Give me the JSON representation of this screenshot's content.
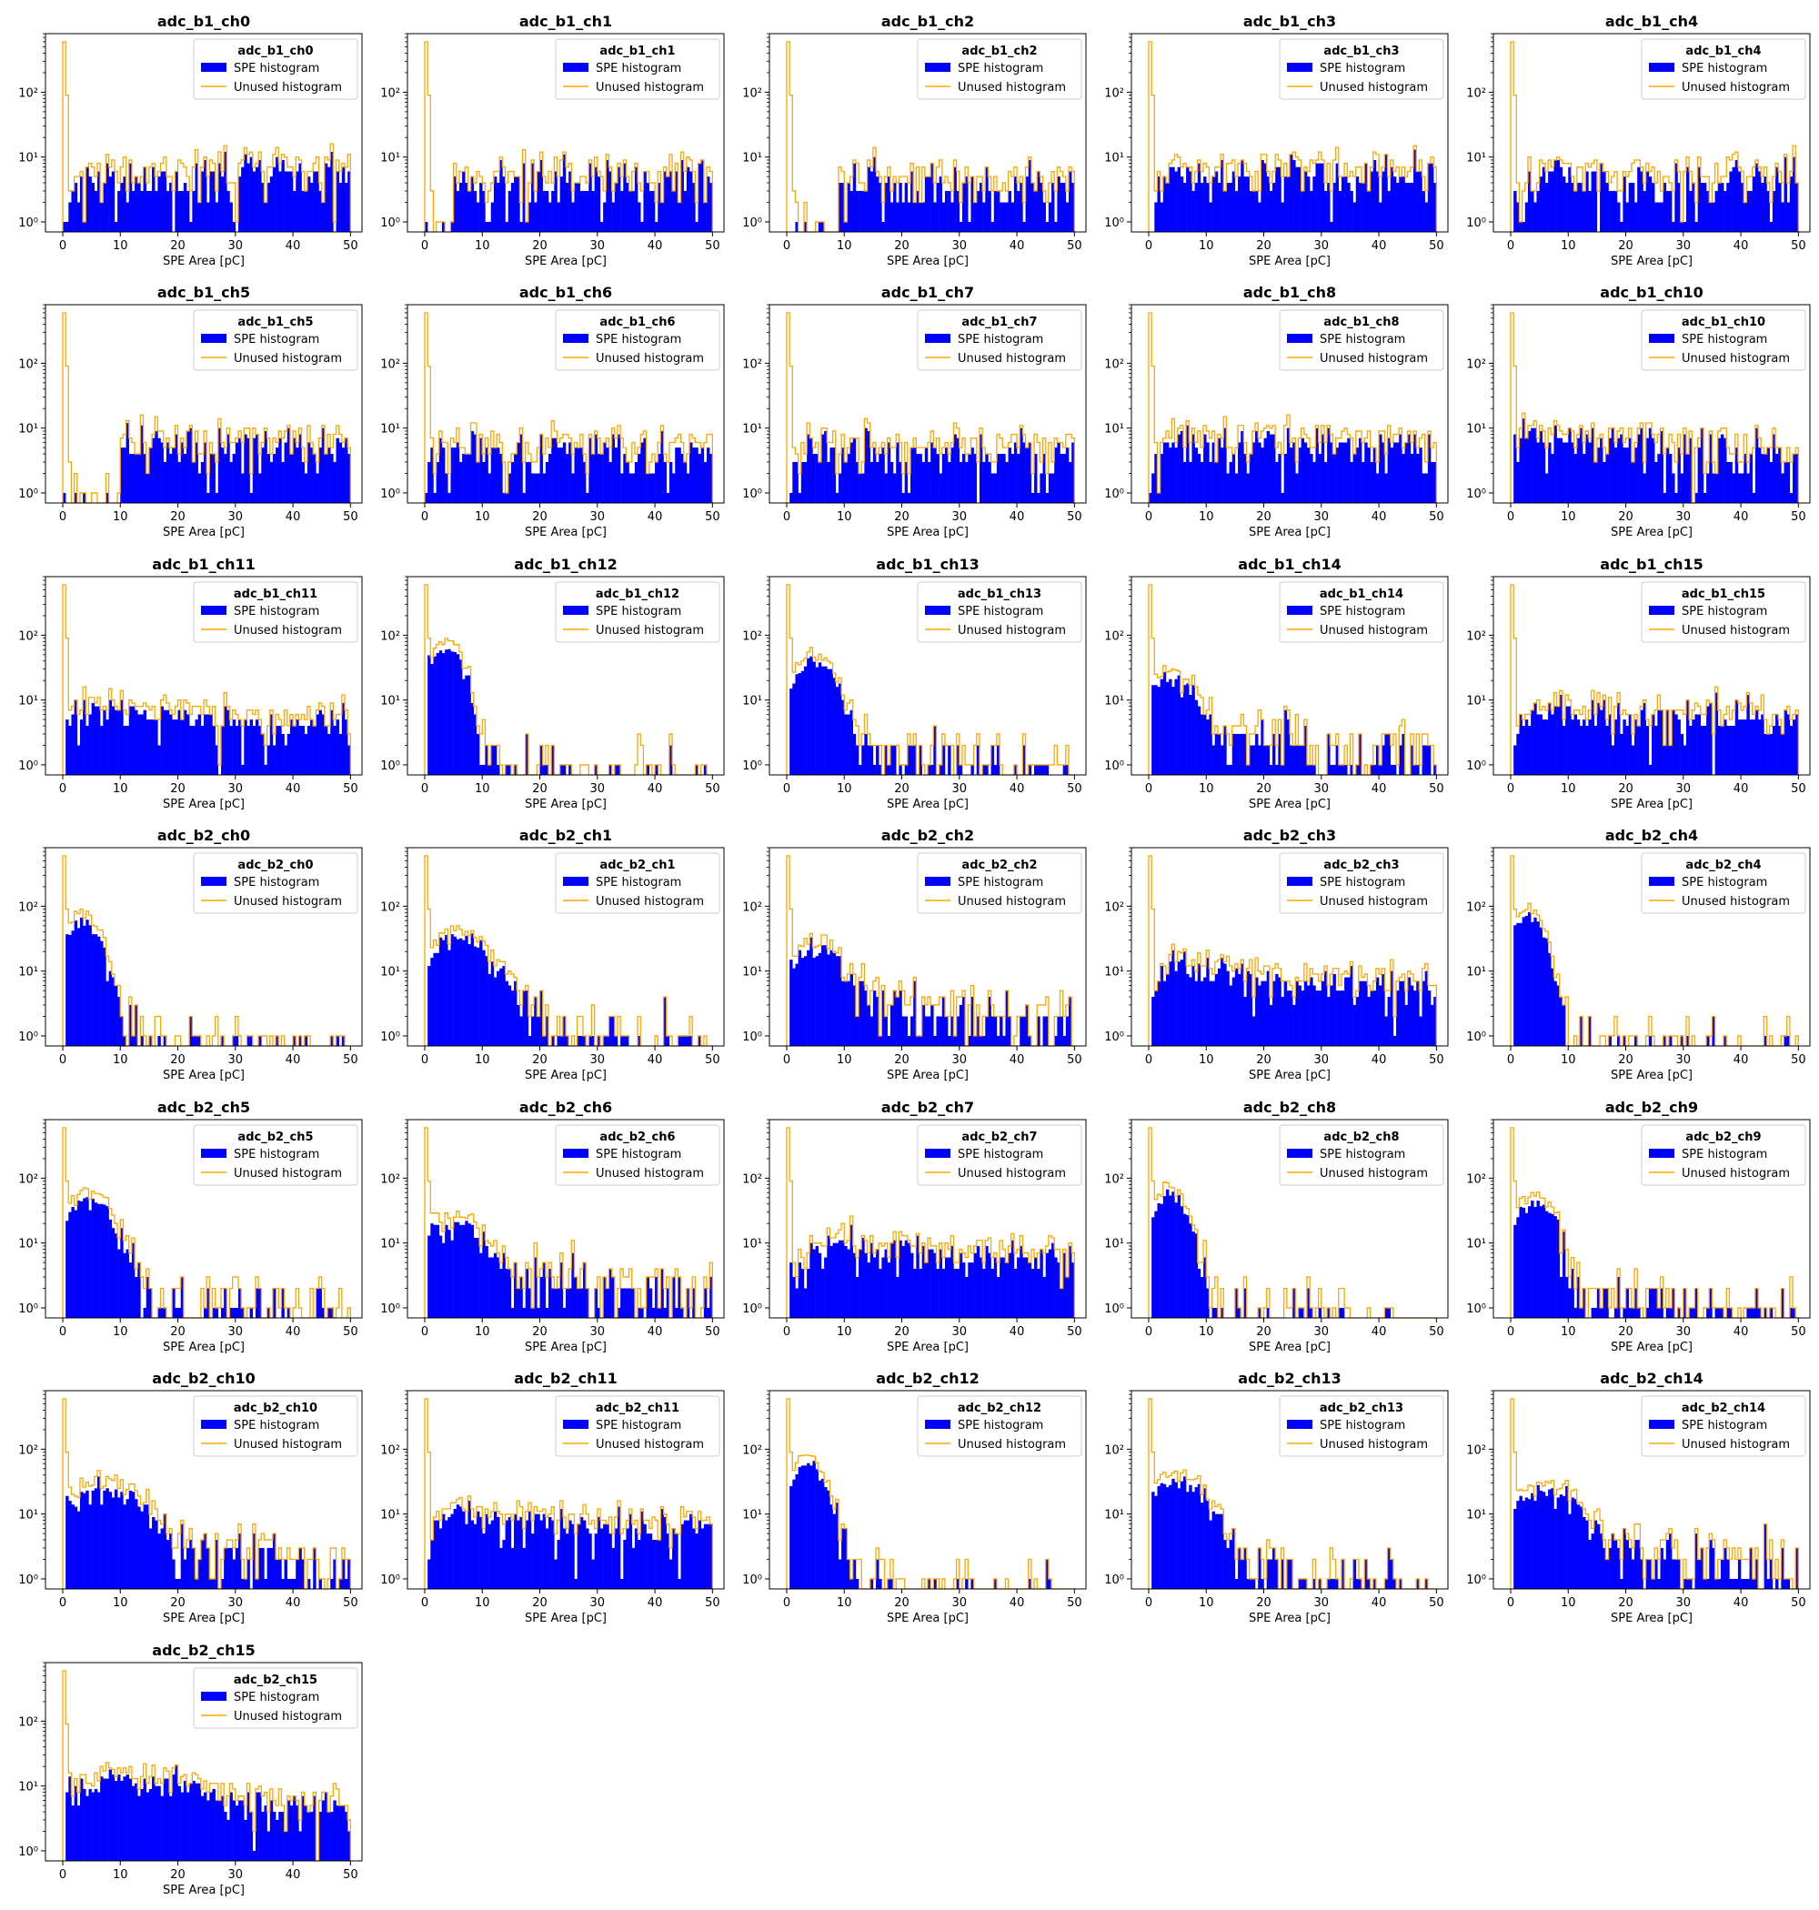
{
  "figure": {
    "panel_order": [
      "adc_b1_ch0",
      "adc_b1_ch1",
      "adc_b1_ch2",
      "adc_b1_ch3",
      "adc_b1_ch4",
      "adc_b1_ch5",
      "adc_b1_ch6",
      "adc_b1_ch7",
      "adc_b1_ch8",
      "adc_b1_ch10",
      "adc_b1_ch11",
      "adc_b1_ch12",
      "adc_b1_ch13",
      "adc_b1_ch14",
      "adc_b1_ch15",
      "adc_b2_ch0",
      "adc_b2_ch1",
      "adc_b2_ch2",
      "adc_b2_ch3",
      "adc_b2_ch4",
      "adc_b2_ch5",
      "adc_b2_ch6",
      "adc_b2_ch7",
      "adc_b2_ch8",
      "adc_b2_ch9",
      "adc_b2_ch10",
      "adc_b2_ch11",
      "adc_b2_ch12",
      "adc_b2_ch13",
      "adc_b2_ch14",
      "adc_b2_ch15"
    ],
    "colors": {
      "spe": "#0000ff",
      "unused": "#ffa500",
      "axis": "#000000",
      "legend_border": "#cccccc"
    }
  },
  "chart_data": {
    "type": "bar",
    "subtype": "histogram-grid",
    "grid": "off",
    "legend_placement": "upper right",
    "xlabel": "SPE Area [pC]",
    "ylabel": "",
    "xlim": [
      -3,
      52
    ],
    "ylim": [
      0.7,
      800
    ],
    "yscale": "log",
    "x_ticks": [
      0,
      10,
      20,
      30,
      40,
      50
    ],
    "y_ticks": [
      {
        "value": 1,
        "label": "10⁰"
      },
      {
        "value": 10,
        "label": "10¹"
      },
      {
        "value": 100,
        "label": "10²"
      }
    ],
    "series_names": [
      "SPE histogram",
      "Unused histogram"
    ],
    "bin_range": [
      0,
      50
    ],
    "bin_width": 0.5,
    "panels": [
      {
        "title": "adc_b1_ch0",
        "legend_title": "adc_b1_ch0",
        "shape": "flat",
        "peak_x": 5,
        "peak_y": 5,
        "tail_level": 5,
        "min_x": 0.5,
        "pedestal": 600
      },
      {
        "title": "adc_b1_ch1",
        "legend_title": "adc_b1_ch1",
        "shape": "flat",
        "peak_x": 5,
        "peak_y": 4,
        "tail_level": 4,
        "min_x": 5,
        "pedestal": 600
      },
      {
        "title": "adc_b1_ch2",
        "legend_title": "adc_b1_ch2",
        "shape": "flat",
        "peak_x": 5,
        "peak_y": 4,
        "tail_level": 4,
        "min_x": 9,
        "pedestal": 600
      },
      {
        "title": "adc_b1_ch3",
        "legend_title": "adc_b1_ch3",
        "shape": "flat",
        "peak_x": 5,
        "peak_y": 5,
        "tail_level": 5,
        "min_x": 0.5,
        "pedestal": 600
      },
      {
        "title": "adc_b1_ch4",
        "legend_title": "adc_b1_ch4",
        "shape": "flat",
        "peak_x": 5,
        "peak_y": 5,
        "tail_level": 4,
        "min_x": 0.5,
        "pedestal": 600
      },
      {
        "title": "adc_b1_ch5",
        "legend_title": "adc_b1_ch5",
        "shape": "flat",
        "peak_x": 5,
        "peak_y": 5,
        "tail_level": 5,
        "min_x": 10,
        "pedestal": 600
      },
      {
        "title": "adc_b1_ch6",
        "legend_title": "adc_b1_ch6",
        "shape": "flat",
        "peak_x": 5,
        "peak_y": 5,
        "tail_level": 4,
        "min_x": 0.5,
        "pedestal": 600
      },
      {
        "title": "adc_b1_ch7",
        "legend_title": "adc_b1_ch7",
        "shape": "flat",
        "peak_x": 5,
        "peak_y": 5,
        "tail_level": 4,
        "min_x": 1,
        "pedestal": 600
      },
      {
        "title": "adc_b1_ch8",
        "legend_title": "adc_b1_ch8",
        "shape": "flat",
        "peak_x": 5,
        "peak_y": 6,
        "tail_level": 5,
        "min_x": 0.5,
        "pedestal": 600
      },
      {
        "title": "adc_b1_ch10",
        "legend_title": "adc_b1_ch10",
        "shape": "flat",
        "peak_x": 2,
        "peak_y": 8,
        "tail_level": 4,
        "min_x": 0.5,
        "pedestal": 600
      },
      {
        "title": "adc_b1_ch11",
        "legend_title": "adc_b1_ch11",
        "shape": "flat",
        "peak_x": 5,
        "peak_y": 8,
        "tail_level": 4,
        "min_x": 0.5,
        "pedestal": 600
      },
      {
        "title": "adc_b1_ch12",
        "legend_title": "adc_b1_ch12",
        "shape": "peak",
        "peak_x": 3.5,
        "peak_y": 60,
        "tail_level": 0.6,
        "min_x": 0.5,
        "pedestal": 600
      },
      {
        "title": "adc_b1_ch13",
        "legend_title": "adc_b1_ch13",
        "shape": "peak",
        "peak_x": 4.5,
        "peak_y": 35,
        "tail_level": 1.8,
        "min_x": 0.5,
        "pedestal": 600
      },
      {
        "title": "adc_b1_ch14",
        "legend_title": "adc_b1_ch14",
        "shape": "peak",
        "peak_x": 4,
        "peak_y": 18,
        "tail_level": 3.5,
        "min_x": 0.5,
        "pedestal": 600
      },
      {
        "title": "adc_b1_ch15",
        "legend_title": "adc_b1_ch15",
        "shape": "flat",
        "peak_x": 5,
        "peak_y": 6,
        "tail_level": 5,
        "min_x": 0.5,
        "pedestal": 600
      },
      {
        "title": "adc_b2_ch0",
        "legend_title": "adc_b2_ch0",
        "shape": "peak",
        "peak_x": 3.5,
        "peak_y": 55,
        "tail_level": 0.6,
        "min_x": 0.5,
        "pedestal": 600
      },
      {
        "title": "adc_b2_ch1",
        "legend_title": "adc_b2_ch1",
        "shape": "peak",
        "peak_x": 6,
        "peak_y": 30,
        "tail_level": 1.5,
        "min_x": 0.5,
        "pedestal": 600
      },
      {
        "title": "adc_b2_ch2",
        "legend_title": "adc_b2_ch2",
        "shape": "peak",
        "peak_x": 5,
        "peak_y": 18,
        "tail_level": 3.5,
        "min_x": 0.5,
        "pedestal": 600
      },
      {
        "title": "adc_b2_ch3",
        "legend_title": "adc_b2_ch3",
        "shape": "flat",
        "peak_x": 5,
        "peak_y": 12,
        "tail_level": 5,
        "min_x": 0.5,
        "pedestal": 600
      },
      {
        "title": "adc_b2_ch4",
        "legend_title": "adc_b2_ch4",
        "shape": "peak",
        "peak_x": 3,
        "peak_y": 70,
        "tail_level": 0.5,
        "min_x": 0.5,
        "pedestal": 600
      },
      {
        "title": "adc_b2_ch5",
        "legend_title": "adc_b2_ch5",
        "shape": "peak",
        "peak_x": 4.5,
        "peak_y": 45,
        "tail_level": 1.5,
        "min_x": 0.5,
        "pedestal": 600
      },
      {
        "title": "adc_b2_ch6",
        "legend_title": "adc_b2_ch6",
        "shape": "peak",
        "peak_x": 5,
        "peak_y": 18,
        "tail_level": 3.5,
        "min_x": 0.5,
        "pedestal": 600
      },
      {
        "title": "adc_b2_ch7",
        "legend_title": "adc_b2_ch7",
        "shape": "flat",
        "peak_x": 10,
        "peak_y": 10,
        "tail_level": 5,
        "min_x": 0.5,
        "pedestal": 600
      },
      {
        "title": "adc_b2_ch8",
        "legend_title": "adc_b2_ch8",
        "shape": "peak",
        "peak_x": 3.5,
        "peak_y": 55,
        "tail_level": 0.5,
        "min_x": 0.5,
        "pedestal": 600
      },
      {
        "title": "adc_b2_ch9",
        "legend_title": "adc_b2_ch9",
        "shape": "peak",
        "peak_x": 4,
        "peak_y": 40,
        "tail_level": 1.5,
        "min_x": 0.5,
        "pedestal": 600
      },
      {
        "title": "adc_b2_ch10",
        "legend_title": "adc_b2_ch10",
        "shape": "peak",
        "peak_x": 7,
        "peak_y": 22,
        "tail_level": 4,
        "min_x": 0.5,
        "pedestal": 600
      },
      {
        "title": "adc_b2_ch11",
        "legend_title": "adc_b2_ch11",
        "shape": "flat",
        "peak_x": 5,
        "peak_y": 9,
        "tail_level": 6,
        "min_x": 0.5,
        "pedestal": 600
      },
      {
        "title": "adc_b2_ch12",
        "legend_title": "adc_b2_ch12",
        "shape": "peak",
        "peak_x": 3.5,
        "peak_y": 60,
        "tail_level": 0.5,
        "min_x": 0.5,
        "pedestal": 600
      },
      {
        "title": "adc_b2_ch13",
        "legend_title": "adc_b2_ch13",
        "shape": "peak",
        "peak_x": 5,
        "peak_y": 32,
        "tail_level": 1.5,
        "min_x": 0.5,
        "pedestal": 600
      },
      {
        "title": "adc_b2_ch14",
        "legend_title": "adc_b2_ch14",
        "shape": "peak",
        "peak_x": 6,
        "peak_y": 20,
        "tail_level": 4,
        "min_x": 0.5,
        "pedestal": 600
      },
      {
        "title": "adc_b2_ch15",
        "legend_title": "adc_b2_ch15",
        "shape": "flat",
        "peak_x": 9,
        "peak_y": 14,
        "tail_level": 3.5,
        "min_x": 0.5,
        "pedestal": 600
      }
    ]
  }
}
